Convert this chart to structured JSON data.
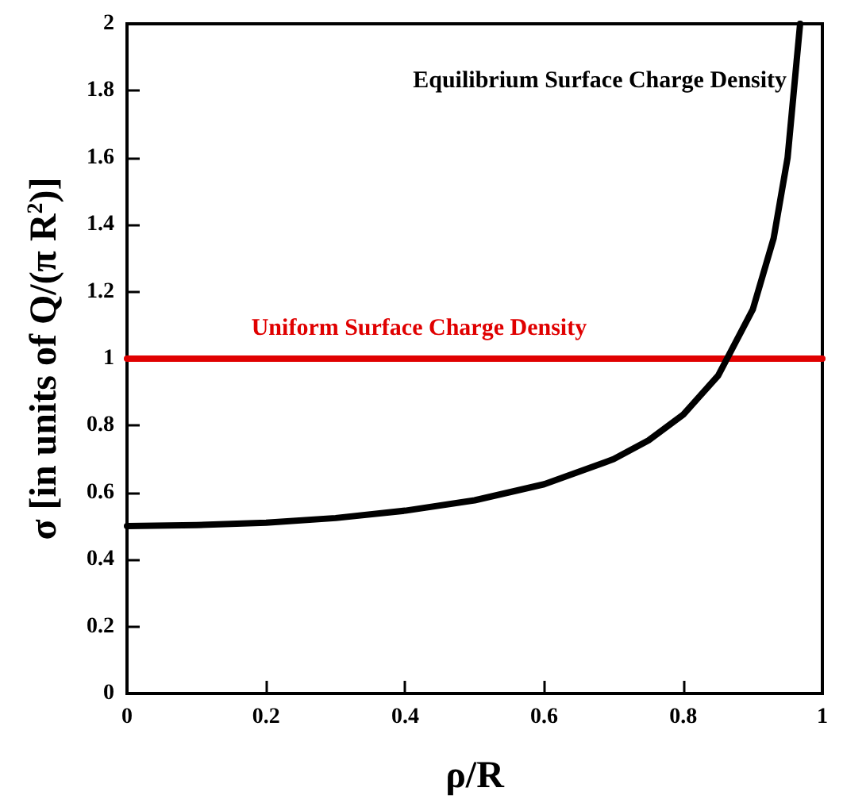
{
  "chart_data": {
    "type": "line",
    "xlabel": "ρ/R",
    "ylabel": "σ [in units of Q/(π R$^{2}$)]",
    "xlim": [
      0,
      1
    ],
    "xticks": [
      0,
      0.2,
      0.4,
      0.6,
      0.8,
      1
    ],
    "ylim": [
      0,
      2
    ],
    "yticks": [
      0,
      0.2,
      0.4,
      0.6,
      0.8,
      1,
      1.2,
      1.4,
      1.6,
      1.8,
      2
    ],
    "grid": false,
    "legend": false,
    "marker": "none",
    "line_style": "solid",
    "series": [
      {
        "name": "Uniform Surface Charge Density",
        "color": "#e00000",
        "x": [
          0,
          1
        ],
        "values": [
          1,
          1
        ]
      },
      {
        "name": "Equilibrium Surface Charge Density",
        "color": "#000000",
        "x": [
          0,
          0.1,
          0.2,
          0.3,
          0.4,
          0.5,
          0.6,
          0.7,
          0.75,
          0.8,
          0.85,
          0.9,
          0.93,
          0.95,
          0.968
        ],
        "values": [
          0.5,
          0.503,
          0.51,
          0.524,
          0.546,
          0.577,
          0.625,
          0.7,
          0.756,
          0.833,
          0.949,
          1.147,
          1.36,
          1.6,
          2
        ]
      }
    ]
  }
}
